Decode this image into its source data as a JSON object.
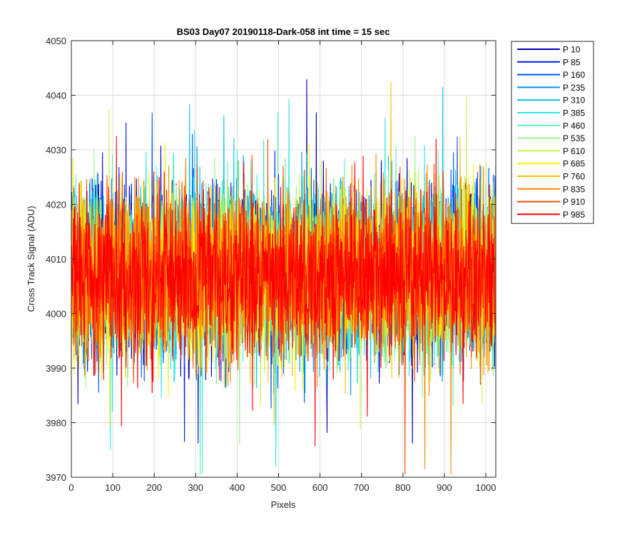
{
  "chart_data": {
    "type": "line",
    "title": "BS03 Day07 20190118-Dark-058 int time = 15 sec",
    "xlabel": "Pixels",
    "ylabel": "Cross Track Signal (ADU)",
    "xlim": [
      0,
      1024
    ],
    "ylim": [
      3970,
      4050
    ],
    "xticks": [
      0,
      100,
      200,
      300,
      400,
      500,
      600,
      700,
      800,
      900,
      1000
    ],
    "yticks": [
      3970,
      3980,
      3990,
      4000,
      4010,
      4020,
      4030,
      4040,
      4050
    ],
    "grid": true,
    "legend_position": "outside-top-right",
    "signal_summary": {
      "mean": 4007,
      "typical_min": 3985,
      "typical_max": 4032
    },
    "series": [
      {
        "name": "P 10",
        "color": "#0000b4"
      },
      {
        "name": "P 85",
        "color": "#0018e6"
      },
      {
        "name": "P 160",
        "color": "#0055f0"
      },
      {
        "name": "P 235",
        "color": "#0093ee"
      },
      {
        "name": "P 310",
        "color": "#00c4ee"
      },
      {
        "name": "P 385",
        "color": "#2ae8e8"
      },
      {
        "name": "P 460",
        "color": "#5cf2c0"
      },
      {
        "name": "P 535",
        "color": "#96f78c"
      },
      {
        "name": "P 610",
        "color": "#c8f550"
      },
      {
        "name": "P 685",
        "color": "#f4f400"
      },
      {
        "name": "P 760",
        "color": "#f8c400"
      },
      {
        "name": "P 835",
        "color": "#fa8a00"
      },
      {
        "name": "P 910",
        "color": "#fd4b00"
      },
      {
        "name": "P 985",
        "color": "#ff0000"
      }
    ]
  }
}
